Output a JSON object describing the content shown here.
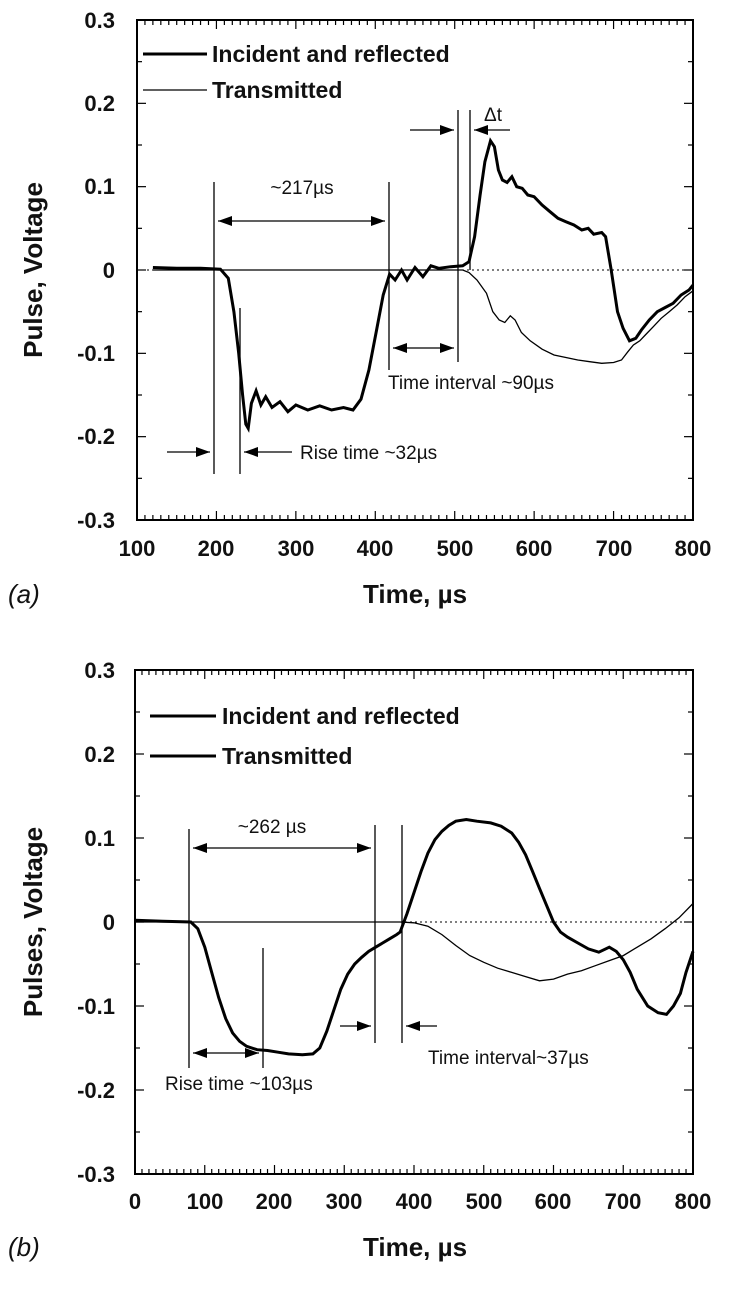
{
  "chart_data": [
    {
      "type": "line",
      "panel_label": "(a)",
      "xlabel": "Time, µs",
      "ylabel": "Pulse, Voltage",
      "xlim": [
        100,
        800
      ],
      "ylim": [
        -0.3,
        0.3
      ],
      "xticks": [
        "100",
        "200",
        "300",
        "400",
        "500",
        "600",
        "700",
        "800"
      ],
      "yticks": [
        "-0.3",
        "-0.2",
        "-0.1",
        "0",
        "0.1",
        "0.2",
        "0.3"
      ],
      "grid": false,
      "legend_position": "top-left",
      "series": [
        {
          "name": "Incident and reflected",
          "style": "thick",
          "points": [
            [
              120,
              0.003
            ],
            [
              150,
              0.002
            ],
            [
              180,
              0.002
            ],
            [
              205,
              0.001
            ],
            [
              215,
              -0.01
            ],
            [
              222,
              -0.05
            ],
            [
              228,
              -0.1
            ],
            [
              233,
              -0.15
            ],
            [
              237,
              -0.185
            ],
            [
              240,
              -0.19
            ],
            [
              244,
              -0.16
            ],
            [
              250,
              -0.145
            ],
            [
              256,
              -0.162
            ],
            [
              262,
              -0.152
            ],
            [
              270,
              -0.165
            ],
            [
              280,
              -0.158
            ],
            [
              290,
              -0.17
            ],
            [
              300,
              -0.162
            ],
            [
              315,
              -0.168
            ],
            [
              330,
              -0.163
            ],
            [
              345,
              -0.168
            ],
            [
              360,
              -0.165
            ],
            [
              372,
              -0.168
            ],
            [
              382,
              -0.155
            ],
            [
              392,
              -0.12
            ],
            [
              402,
              -0.07
            ],
            [
              410,
              -0.03
            ],
            [
              418,
              -0.005
            ],
            [
              425,
              -0.012
            ],
            [
              433,
              0.0
            ],
            [
              440,
              -0.012
            ],
            [
              450,
              0.003
            ],
            [
              460,
              -0.008
            ],
            [
              470,
              0.005
            ],
            [
              480,
              0.002
            ],
            [
              495,
              0.004
            ],
            [
              510,
              0.005
            ],
            [
              518,
              0.01
            ],
            [
              525,
              0.04
            ],
            [
              532,
              0.09
            ],
            [
              538,
              0.13
            ],
            [
              545,
              0.155
            ],
            [
              550,
              0.148
            ],
            [
              555,
              0.12
            ],
            [
              560,
              0.108
            ],
            [
              566,
              0.105
            ],
            [
              572,
              0.112
            ],
            [
              578,
              0.1
            ],
            [
              585,
              0.098
            ],
            [
              592,
              0.09
            ],
            [
              600,
              0.088
            ],
            [
              610,
              0.078
            ],
            [
              620,
              0.07
            ],
            [
              630,
              0.062
            ],
            [
              640,
              0.058
            ],
            [
              650,
              0.054
            ],
            [
              660,
              0.048
            ],
            [
              668,
              0.05
            ],
            [
              675,
              0.043
            ],
            [
              685,
              0.045
            ],
            [
              690,
              0.04
            ],
            [
              697,
              0.0
            ],
            [
              705,
              -0.05
            ],
            [
              712,
              -0.07
            ],
            [
              720,
              -0.085
            ],
            [
              728,
              -0.082
            ],
            [
              735,
              -0.072
            ],
            [
              745,
              -0.06
            ],
            [
              755,
              -0.05
            ],
            [
              765,
              -0.045
            ],
            [
              775,
              -0.04
            ],
            [
              785,
              -0.03
            ],
            [
              795,
              -0.024
            ],
            [
              800,
              -0.018
            ]
          ]
        },
        {
          "name": "Transmitted",
          "style": "thin",
          "points": [
            [
              120,
              0.0
            ],
            [
              480,
              0.0
            ],
            [
              510,
              0.0
            ],
            [
              518,
              -0.003
            ],
            [
              528,
              -0.012
            ],
            [
              540,
              -0.028
            ],
            [
              548,
              -0.05
            ],
            [
              556,
              -0.06
            ],
            [
              563,
              -0.063
            ],
            [
              570,
              -0.055
            ],
            [
              576,
              -0.06
            ],
            [
              584,
              -0.075
            ],
            [
              595,
              -0.085
            ],
            [
              610,
              -0.095
            ],
            [
              625,
              -0.102
            ],
            [
              640,
              -0.105
            ],
            [
              655,
              -0.108
            ],
            [
              670,
              -0.11
            ],
            [
              685,
              -0.112
            ],
            [
              700,
              -0.111
            ],
            [
              710,
              -0.108
            ],
            [
              718,
              -0.098
            ],
            [
              725,
              -0.09
            ],
            [
              733,
              -0.085
            ],
            [
              740,
              -0.078
            ],
            [
              750,
              -0.068
            ],
            [
              760,
              -0.058
            ],
            [
              770,
              -0.05
            ],
            [
              780,
              -0.042
            ],
            [
              790,
              -0.032
            ],
            [
              800,
              -0.025
            ]
          ]
        }
      ],
      "annotations": {
        "dt_label": "Δt",
        "width_label": "~217µs",
        "interval_label": "Time interval ~90µs",
        "rise_label": "Rise time ~32µs"
      }
    },
    {
      "type": "line",
      "panel_label": "(b)",
      "xlabel": "Time, µs",
      "ylabel": "Pulses, Voltage",
      "xlim": [
        0,
        800
      ],
      "ylim": [
        -0.3,
        0.3
      ],
      "xticks": [
        "0",
        "100",
        "200",
        "300",
        "400",
        "500",
        "600",
        "700",
        "800"
      ],
      "yticks": [
        "-0.3",
        "-0.2",
        "-0.1",
        "0",
        "0.1",
        "0.2",
        "0.3"
      ],
      "grid": false,
      "legend_position": "top-left",
      "series": [
        {
          "name": "Incident and reflected",
          "style": "thick",
          "points": [
            [
              0,
              0.002
            ],
            [
              40,
              0.001
            ],
            [
              80,
              0.0
            ],
            [
              90,
              -0.008
            ],
            [
              100,
              -0.03
            ],
            [
              110,
              -0.06
            ],
            [
              120,
              -0.09
            ],
            [
              130,
              -0.115
            ],
            [
              140,
              -0.132
            ],
            [
              150,
              -0.142
            ],
            [
              160,
              -0.148
            ],
            [
              175,
              -0.152
            ],
            [
              190,
              -0.153
            ],
            [
              205,
              -0.155
            ],
            [
              220,
              -0.157
            ],
            [
              240,
              -0.158
            ],
            [
              255,
              -0.157
            ],
            [
              265,
              -0.15
            ],
            [
              275,
              -0.13
            ],
            [
              285,
              -0.105
            ],
            [
              295,
              -0.08
            ],
            [
              305,
              -0.062
            ],
            [
              315,
              -0.05
            ],
            [
              325,
              -0.042
            ],
            [
              335,
              -0.035
            ],
            [
              345,
              -0.03
            ],
            [
              355,
              -0.025
            ],
            [
              365,
              -0.02
            ],
            [
              375,
              -0.015
            ],
            [
              380,
              -0.012
            ],
            [
              390,
              0.01
            ],
            [
              400,
              0.035
            ],
            [
              410,
              0.06
            ],
            [
              420,
              0.082
            ],
            [
              430,
              0.098
            ],
            [
              440,
              0.108
            ],
            [
              450,
              0.115
            ],
            [
              460,
              0.12
            ],
            [
              475,
              0.122
            ],
            [
              490,
              0.12
            ],
            [
              510,
              0.118
            ],
            [
              525,
              0.114
            ],
            [
              540,
              0.106
            ],
            [
              550,
              0.095
            ],
            [
              560,
              0.08
            ],
            [
              570,
              0.06
            ],
            [
              580,
              0.04
            ],
            [
              590,
              0.02
            ],
            [
              600,
              0.0
            ],
            [
              610,
              -0.012
            ],
            [
              620,
              -0.018
            ],
            [
              635,
              -0.025
            ],
            [
              650,
              -0.032
            ],
            [
              665,
              -0.036
            ],
            [
              680,
              -0.03
            ],
            [
              690,
              -0.035
            ],
            [
              700,
              -0.045
            ],
            [
              710,
              -0.06
            ],
            [
              720,
              -0.08
            ],
            [
              735,
              -0.1
            ],
            [
              750,
              -0.108
            ],
            [
              762,
              -0.11
            ],
            [
              772,
              -0.1
            ],
            [
              782,
              -0.085
            ],
            [
              790,
              -0.06
            ],
            [
              800,
              -0.035
            ]
          ]
        },
        {
          "name": "Transmitted",
          "style": "thin",
          "points": [
            [
              0,
              0.0
            ],
            [
              100,
              0.0
            ],
            [
              200,
              0.0
            ],
            [
              300,
              0.0
            ],
            [
              380,
              0.0
            ],
            [
              400,
              -0.001
            ],
            [
              420,
              -0.005
            ],
            [
              440,
              -0.015
            ],
            [
              460,
              -0.028
            ],
            [
              480,
              -0.04
            ],
            [
              500,
              -0.048
            ],
            [
              520,
              -0.055
            ],
            [
              540,
              -0.06
            ],
            [
              560,
              -0.065
            ],
            [
              580,
              -0.07
            ],
            [
              600,
              -0.068
            ],
            [
              620,
              -0.062
            ],
            [
              640,
              -0.058
            ],
            [
              660,
              -0.052
            ],
            [
              680,
              -0.046
            ],
            [
              700,
              -0.04
            ],
            [
              720,
              -0.03
            ],
            [
              740,
              -0.02
            ],
            [
              760,
              -0.008
            ],
            [
              780,
              0.005
            ],
            [
              800,
              0.022
            ]
          ]
        }
      ],
      "annotations": {
        "width_label": "~262 µs",
        "interval_label": "Time interval~37µs",
        "rise_label": "Rise time ~103µs"
      }
    }
  ]
}
